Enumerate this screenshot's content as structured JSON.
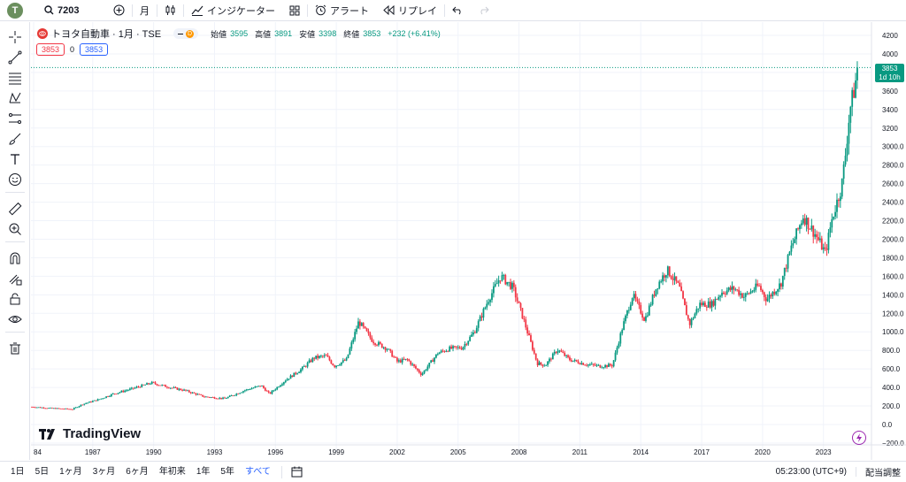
{
  "toolbar": {
    "avatar_letter": "T",
    "symbol": "7203",
    "interval": "月",
    "indicators_label": "インジケーター",
    "alerts_label": "アラート",
    "replay_label": "リプレイ"
  },
  "legend": {
    "title": "トヨタ自動車 · 1月 · TSE",
    "badge": "D",
    "open_label": "始値",
    "open_value": "3595",
    "high_label": "高値",
    "high_value": "3891",
    "low_label": "安値",
    "low_value": "3398",
    "close_label": "終値",
    "close_value": "3853",
    "change": "+232 (+6.41%)",
    "bid": "3853",
    "spread": "0",
    "ask": "3853"
  },
  "last_price": {
    "price": "3853",
    "countdown": "1d 10h"
  },
  "watermark": "TradingView",
  "bottom": {
    "ranges": [
      "1日",
      "5日",
      "1ヶ月",
      "3ヶ月",
      "6ヶ月",
      "年初来",
      "1年",
      "5年",
      "すべて"
    ],
    "active_range": "すべて",
    "time": "05:23:00 (UTC+9)",
    "adjust": "配当調整"
  },
  "colors": {
    "up": "#089981",
    "down": "#f23645",
    "accent": "#2962ff"
  },
  "chart_data": {
    "type": "candlestick",
    "title": "トヨタ自動車 · 1月 · TSE",
    "x_ticks": [
      "84",
      "1987",
      "1990",
      "1993",
      "1996",
      "1999",
      "2002",
      "2005",
      "2008",
      "2011",
      "2014",
      "2017",
      "2020",
      "2023"
    ],
    "y_ticks": [
      "4200",
      "4000",
      "3800",
      "3600",
      "3400",
      "3200",
      "3000.0",
      "2800.0",
      "2600.0",
      "2400.0",
      "2200.0",
      "2000.0",
      "1800.0",
      "1600.0",
      "1400.0",
      "1200.0",
      "1000.0",
      "800.0",
      "600.0",
      "400.0",
      "200.0",
      "0.0",
      "−200.0"
    ],
    "ylim": [
      -200,
      4200
    ],
    "xlim": [
      1984.0,
      2024.8
    ],
    "grid": true,
    "last_close": 3853,
    "anchors": [
      [
        1984.0,
        190
      ],
      [
        1985.0,
        175
      ],
      [
        1986.0,
        165
      ],
      [
        1986.5,
        220
      ],
      [
        1987.3,
        270
      ],
      [
        1988.0,
        330
      ],
      [
        1989.0,
        390
      ],
      [
        1989.9,
        450
      ],
      [
        1990.8,
        400
      ],
      [
        1991.5,
        370
      ],
      [
        1992.5,
        300
      ],
      [
        1993.5,
        280
      ],
      [
        1994.5,
        370
      ],
      [
        1995.3,
        420
      ],
      [
        1995.7,
        330
      ],
      [
        1996.5,
        480
      ],
      [
        1997.3,
        600
      ],
      [
        1997.9,
        720
      ],
      [
        1998.5,
        740
      ],
      [
        1998.9,
        630
      ],
      [
        1999.5,
        700
      ],
      [
        2000.1,
        1110
      ],
      [
        2000.8,
        900
      ],
      [
        2001.5,
        820
      ],
      [
        2002.0,
        680
      ],
      [
        2002.5,
        700
      ],
      [
        2003.2,
        540
      ],
      [
        2004.0,
        770
      ],
      [
        2004.6,
        820
      ],
      [
        2005.2,
        830
      ],
      [
        2005.8,
        1000
      ],
      [
        2006.5,
        1350
      ],
      [
        2007.1,
        1600
      ],
      [
        2007.7,
        1480
      ],
      [
        2008.2,
        1150
      ],
      [
        2008.9,
        660
      ],
      [
        2009.3,
        640
      ],
      [
        2009.9,
        810
      ],
      [
        2010.5,
        700
      ],
      [
        2011.3,
        650
      ],
      [
        2012.0,
        630
      ],
      [
        2012.6,
        640
      ],
      [
        2013.1,
        1050
      ],
      [
        2013.6,
        1400
      ],
      [
        2014.2,
        1130
      ],
      [
        2014.8,
        1500
      ],
      [
        2015.3,
        1670
      ],
      [
        2015.9,
        1480
      ],
      [
        2016.4,
        1080
      ],
      [
        2016.9,
        1300
      ],
      [
        2017.5,
        1300
      ],
      [
        2018.0,
        1430
      ],
      [
        2018.6,
        1470
      ],
      [
        2019.1,
        1380
      ],
      [
        2019.8,
        1500
      ],
      [
        2020.2,
        1350
      ],
      [
        2020.9,
        1520
      ],
      [
        2021.4,
        1900
      ],
      [
        2022.0,
        2250
      ],
      [
        2022.6,
        2050
      ],
      [
        2023.1,
        1850
      ],
      [
        2023.4,
        2200
      ],
      [
        2023.9,
        2580
      ],
      [
        2024.1,
        2950
      ],
      [
        2024.3,
        3400
      ],
      [
        2024.5,
        3600
      ],
      [
        2024.7,
        3853
      ]
    ]
  }
}
